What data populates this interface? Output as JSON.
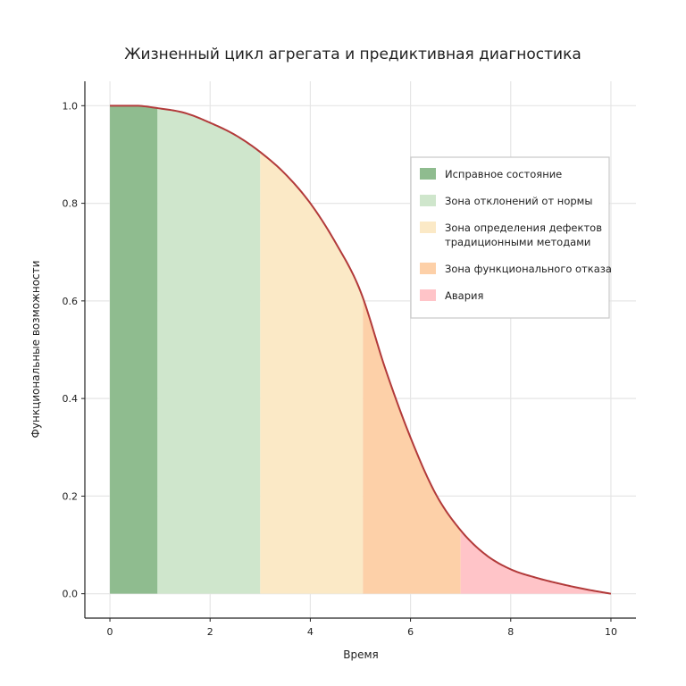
{
  "chart_data": {
    "type": "area",
    "title": "Жизненный цикл агрегата и предиктивная диагностика",
    "xlabel": "Время",
    "ylabel": "Функциональные возможности",
    "xlim": [
      -0.5,
      10.5
    ],
    "ylim": [
      -0.05,
      1.05
    ],
    "xticks": [
      "0",
      "2",
      "4",
      "6",
      "8",
      "10"
    ],
    "yticks": [
      "0.0",
      "0.2",
      "0.4",
      "0.6",
      "0.8",
      "1.0"
    ],
    "grid": true,
    "legend_position": "top-right",
    "curve_color": "#b23a3a",
    "curve": {
      "x": [
        0,
        0.5,
        0.95,
        1.5,
        2,
        2.5,
        3,
        3.5,
        4,
        4.5,
        5,
        5.5,
        6,
        6.5,
        7,
        7.5,
        8,
        8.5,
        9,
        9.5,
        10
      ],
      "y": [
        1.0,
        1.0,
        0.995,
        0.985,
        0.965,
        0.94,
        0.905,
        0.86,
        0.8,
        0.72,
        0.62,
        0.46,
        0.32,
        0.205,
        0.13,
        0.08,
        0.05,
        0.033,
        0.02,
        0.009,
        0.0
      ]
    },
    "zones": [
      {
        "name": "Исправное состояние",
        "x_start": 0,
        "x_end": 0.95,
        "color": "#8fbc8f"
      },
      {
        "name": "Зона отклонений от нормы",
        "x_start": 0.95,
        "x_end": 3,
        "color": "#cfe6cc"
      },
      {
        "name": "Зона определения дефектов традиционными методами",
        "legend_lines": [
          "Зона определения дефектов",
          "традиционными методами"
        ],
        "x_start": 3,
        "x_end": 5.05,
        "color": "#fbe9c6"
      },
      {
        "name": "Зона функционального отказа",
        "x_start": 5.05,
        "x_end": 7,
        "color": "#fdd0a8"
      },
      {
        "name": "Авария",
        "x_start": 7,
        "x_end": 10,
        "color": "#ffc4c8"
      }
    ]
  }
}
